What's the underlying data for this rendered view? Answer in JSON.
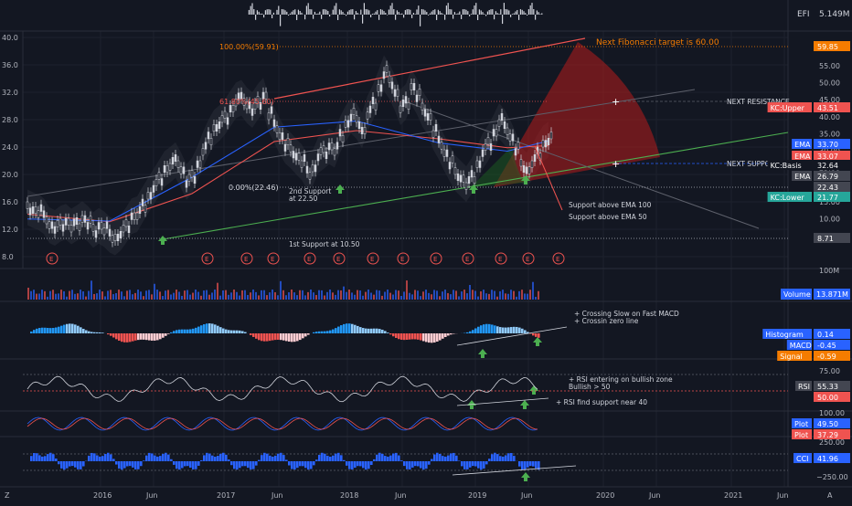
{
  "colors": {
    "bg": "#131722",
    "grid": "#1f2433",
    "axis_text": "#b2b5be",
    "candle": "#d1d4dc",
    "red": "#ef5350",
    "green": "#26a69a",
    "blue": "#2962ff",
    "orange": "#f57c00",
    "white": "#ffffff"
  },
  "chart_data": [
    {
      "type": "histogram",
      "name": "EFI",
      "label": "EFI",
      "value_label": "5.149M"
    },
    {
      "type": "candlestick",
      "title": "",
      "xlabel": "",
      "ylabel": "",
      "x_ticks": [
        "2016",
        "Jun",
        "2017",
        "Jun",
        "2018",
        "Jun",
        "2019",
        "Jun",
        "2020",
        "Jun",
        "2021",
        "Jun"
      ],
      "y_ticks_left": [
        "40.0",
        "36.0",
        "32.0",
        "28.0",
        "24.0",
        "20.0",
        "16.0",
        "12.0",
        "8.0"
      ],
      "y_ticks_right": [
        "55.00",
        "50.00",
        "45.00",
        "40.00",
        "35.00",
        "30.00",
        "25.00",
        "20.00",
        "15.00",
        "10.00",
        "5.00"
      ],
      "ylim": [
        7,
        41
      ],
      "price_series": {
        "x": [
          0,
          2,
          4,
          6,
          8,
          10,
          12,
          14,
          16,
          18,
          20,
          22,
          24,
          26,
          28,
          30,
          32,
          34,
          36,
          38,
          40,
          42,
          44,
          46,
          48,
          50,
          52,
          54,
          56,
          58,
          60,
          62,
          64,
          66,
          68,
          70,
          72,
          74,
          76,
          78,
          80,
          82,
          84,
          86,
          88,
          90,
          92,
          94,
          96,
          98,
          100,
          102,
          104,
          106,
          108,
          110,
          112,
          114,
          116,
          118,
          120,
          122,
          124,
          126,
          128,
          130,
          132,
          134,
          136,
          138,
          140,
          142,
          144,
          146,
          148,
          150,
          152,
          154,
          156,
          158,
          160,
          162,
          164,
          166,
          168,
          170,
          172,
          174,
          176,
          178,
          180,
          182,
          184,
          186,
          188,
          190
        ],
        "y": [
          15.2,
          14.8,
          14.5,
          13.9,
          12.6,
          12.2,
          12.8,
          13.1,
          12.4,
          12.9,
          13.5,
          12.8,
          11.9,
          12.5,
          12.0,
          11.2,
          10.8,
          11.5,
          12.6,
          13.9,
          14.2,
          15.6,
          16.9,
          18.2,
          19.5,
          20.8,
          21.4,
          22.1,
          20.6,
          18.9,
          19.8,
          21.5,
          23.6,
          25.4,
          26.8,
          27.5,
          28.4,
          29.6,
          30.8,
          31.2,
          30.1,
          29.4,
          30.6,
          31.5,
          28.8,
          27.2,
          25.6,
          24.2,
          23.5,
          22.6,
          21.8,
          20.4,
          20.9,
          22.8,
          23.4,
          24.1,
          23.6,
          25.8,
          27.4,
          28.6,
          27.8,
          26.4,
          28.9,
          30.5,
          32.6,
          34.8,
          33.6,
          31.9,
          29.8,
          30.6,
          32.8,
          31.4,
          29.6,
          28.4,
          26.2,
          24.8,
          23.1,
          21.6,
          20.2,
          19.4,
          18.6,
          19.8,
          21.5,
          23.4,
          24.6,
          26.1,
          27.8,
          26.9,
          25.4,
          23.6,
          21.4,
          20.6,
          21.8,
          23.2,
          24.5,
          25.1
        ]
      },
      "ema_100": {
        "x": [
          0,
          30,
          60,
          90,
          120,
          150,
          175,
          190
        ],
        "y": [
          14.2,
          13.1,
          17.2,
          24.8,
          26.4,
          25.2,
          23.9,
          24.2
        ]
      },
      "ema_50": {
        "x": [
          0,
          30,
          60,
          90,
          120,
          150,
          175,
          190
        ],
        "y": [
          13.5,
          13.2,
          19.6,
          26.9,
          27.8,
          24.6,
          23.4,
          24.9
        ]
      },
      "annotations": [
        "100.00%(59.91)",
        "61.80%(45.60)",
        "0.00%(22.46)",
        "Next Fibonacci target is 60.00",
        "NEXT RESISTANCE",
        "NEXT SUPPORT",
        "2nd Support",
        "at 22.50",
        "1st Support at 10.50",
        "Support above EMA 100",
        "Support above EMA 50"
      ],
      "earnings_marker": "E",
      "labels": [
        {
          "name": "price-label",
          "text": "59.85",
          "color": "#f57c00"
        },
        {
          "name": "kc-upper",
          "text": "KC:Upper",
          "value": "43.51",
          "color": "#ef5350"
        },
        {
          "name": "ema-1",
          "text": "EMA",
          "value": "33.70",
          "color": "#2962ff"
        },
        {
          "name": "ema-2",
          "text": "EMA",
          "value": "33.07",
          "color": "#ef5350"
        },
        {
          "name": "kc-basis",
          "text": "KC:Basis",
          "value": "32.64",
          "color": "#131722"
        },
        {
          "name": "ema-3",
          "text": "EMA",
          "value": "26.79",
          "color": "#434651"
        },
        {
          "name": "price-mid",
          "text": "22.43",
          "color": "#434651"
        },
        {
          "name": "kc-lower",
          "text": "KC:Lower",
          "value": "21.77",
          "color": "#26a69a"
        },
        {
          "name": "price-low",
          "text": "8.71",
          "color": "#434651"
        }
      ]
    },
    {
      "type": "bar",
      "name": "Volume",
      "label": "Volume",
      "value": "13.871M",
      "tick": "100M"
    },
    {
      "type": "histogram",
      "name": "MACD",
      "annotations": [
        "+ Crossing Slow on Fast MACD",
        "+ Crossin zero line"
      ],
      "labels": [
        {
          "text": "Histogram",
          "value": "0.14",
          "color": "#2962ff"
        },
        {
          "text": "MACD",
          "value": "-0.45",
          "color": "#2962ff"
        },
        {
          "text": "Signal",
          "value": "-0.59",
          "color": "#f57c00"
        }
      ]
    },
    {
      "type": "line",
      "name": "RSI",
      "y_ticks": [
        "75.00"
      ],
      "annotations": [
        "+ RSI entering on bullish zone",
        "Bullish > 50",
        "+ RSI find support near 40"
      ],
      "labels": [
        {
          "text": "RSI",
          "value": "55.33",
          "color": "#434651"
        },
        {
          "text": "",
          "value": "50.00",
          "color": "#ef5350"
        }
      ]
    },
    {
      "type": "line",
      "name": "Stoch",
      "y_ticks": [
        "100.00"
      ],
      "labels": [
        {
          "text": "Plot",
          "value": "49.50",
          "color": "#2962ff"
        },
        {
          "text": "Plot",
          "value": "37.29",
          "color": "#ef5350"
        }
      ]
    },
    {
      "type": "histogram",
      "name": "CCI",
      "y_ticks": [
        "250.00",
        "−250.00"
      ],
      "labels": [
        {
          "text": "CCI",
          "value": "41.96",
          "color": "#2962ff"
        }
      ]
    }
  ],
  "footer": {
    "left_icon": "Z",
    "right_icon": "A"
  }
}
